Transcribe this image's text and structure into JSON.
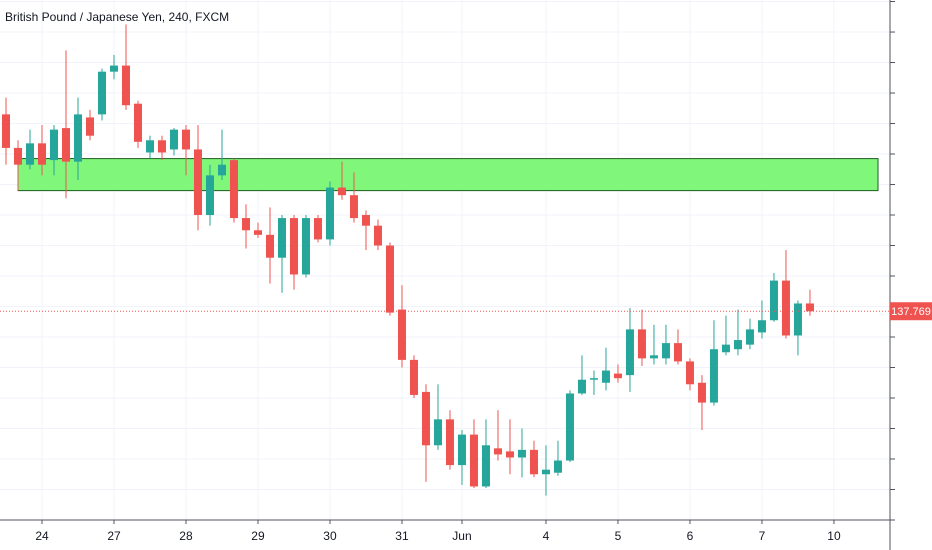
{
  "chart_data": {
    "type": "candlestick",
    "title": "British Pound / Japanese Yen, 240, FXCM",
    "up_color": "#26a69a",
    "down_color": "#ef5350",
    "xlim": [
      -0.5,
      73.67
    ],
    "ylim": [
      136.4,
      139.81
    ],
    "yticks": [
      136.4,
      136.6,
      136.8,
      137.0,
      137.2,
      137.4,
      137.6,
      137.8,
      138.0,
      138.2,
      138.4,
      138.6,
      138.8,
      139.0,
      139.2,
      139.4,
      139.6,
      139.8
    ],
    "xticks": [
      {
        "value": 3,
        "label": "24"
      },
      {
        "value": 9,
        "label": "27"
      },
      {
        "value": 15,
        "label": "28"
      },
      {
        "value": 21,
        "label": "29"
      },
      {
        "value": 27,
        "label": "30"
      },
      {
        "value": 33,
        "label": "31"
      },
      {
        "value": 38,
        "label": "Jun"
      },
      {
        "value": 45,
        "label": "4"
      },
      {
        "value": 51,
        "label": "5"
      },
      {
        "value": 57,
        "label": "6"
      },
      {
        "value": 63,
        "label": "7"
      },
      {
        "value": 69,
        "label": "10"
      }
    ],
    "grid": true,
    "open": [
      139.06,
      138.84,
      138.73,
      138.87,
      138.76,
      138.97,
      138.75,
      139.04,
      139.06,
      139.34,
      139.38,
      139.13,
      138.81,
      138.89,
      138.83,
      138.96,
      138.83,
      138.4,
      138.66,
      138.76,
      138.38,
      138.3,
      138.27,
      138.12,
      138.38,
      138.01,
      138.38,
      138.24,
      138.58,
      138.53,
      138.4,
      138.33,
      138.2,
      137.78,
      137.45,
      137.24,
      136.89,
      137.06,
      136.76,
      136.96,
      136.62,
      136.87,
      136.85,
      136.81,
      136.86,
      136.7,
      136.71,
      136.79,
      137.23,
      137.32,
      137.3,
      137.36,
      137.35,
      137.65,
      137.46,
      137.46,
      137.56,
      137.44,
      137.3,
      137.17,
      137.5,
      137.52,
      137.55,
      137.63,
      137.71,
      137.97,
      137.61,
      137.82
    ],
    "high": [
      139.17,
      138.89,
      138.96,
      138.99,
      138.99,
      139.48,
      139.17,
      139.09,
      139.36,
      139.45,
      139.65,
      139.15,
      138.92,
      138.92,
      138.97,
      138.99,
      138.99,
      138.73,
      138.96,
      138.77,
      138.47,
      138.35,
      138.45,
      138.4,
      138.4,
      138.4,
      138.4,
      138.62,
      138.75,
      138.68,
      138.43,
      138.37,
      138.22,
      137.94,
      137.48,
      137.29,
      137.29,
      137.12,
      136.99,
      137.06,
      137.06,
      137.12,
      137.06,
      137.0,
      136.92,
      136.89,
      136.92,
      137.25,
      137.48,
      137.38,
      137.53,
      137.42,
      137.79,
      137.78,
      137.68,
      137.68,
      137.65,
      137.46,
      137.35,
      137.71,
      137.74,
      137.78,
      137.72,
      137.84,
      138.02,
      138.17,
      137.84,
      137.91
    ],
    "low": [
      138.73,
      138.56,
      138.7,
      138.66,
      138.66,
      138.51,
      138.63,
      138.89,
      139.02,
      139.29,
      139.09,
      138.84,
      138.77,
      138.76,
      138.79,
      138.66,
      138.3,
      138.33,
      138.63,
      138.35,
      138.18,
      138.25,
      137.95,
      137.89,
      137.91,
      137.99,
      138.22,
      138.2,
      138.5,
      138.35,
      138.17,
      138.17,
      137.74,
      137.4,
      137.2,
      136.65,
      136.86,
      136.73,
      136.63,
      136.61,
      136.61,
      136.79,
      136.7,
      136.68,
      136.68,
      136.56,
      136.69,
      136.78,
      137.22,
      137.22,
      137.25,
      137.3,
      137.24,
      137.41,
      137.42,
      137.42,
      137.42,
      137.25,
      136.99,
      137.15,
      137.48,
      137.48,
      137.52,
      137.59,
      137.7,
      137.59,
      137.48,
      137.74
    ],
    "close": [
      138.84,
      138.73,
      138.87,
      138.73,
      138.96,
      138.75,
      139.06,
      138.92,
      139.34,
      139.38,
      139.12,
      138.88,
      138.89,
      138.81,
      138.96,
      138.83,
      138.4,
      138.66,
      138.73,
      138.38,
      138.3,
      138.27,
      138.12,
      138.38,
      138.01,
      138.38,
      138.24,
      138.58,
      138.53,
      138.38,
      138.33,
      138.2,
      137.76,
      137.45,
      137.22,
      136.89,
      137.06,
      136.76,
      136.96,
      136.62,
      136.89,
      136.83,
      136.81,
      136.86,
      136.7,
      136.73,
      136.79,
      137.23,
      137.32,
      137.33,
      137.38,
      137.33,
      137.65,
      137.46,
      137.48,
      137.56,
      137.44,
      137.29,
      137.17,
      137.52,
      137.55,
      137.58,
      137.65,
      137.71,
      137.97,
      137.61,
      137.82,
      137.769
    ],
    "last_price": 137.769,
    "zone": {
      "xlim": [
        1,
        72.67
      ],
      "ylim": [
        138.56,
        138.77
      ],
      "color": "#80f77a",
      "border_color": "#1b5e20"
    }
  }
}
